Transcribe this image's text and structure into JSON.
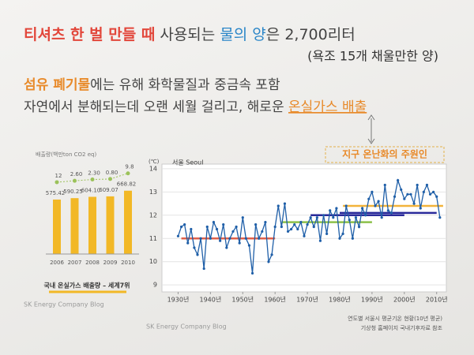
{
  "slide": {
    "line1": [
      "티셔츠 한 벌 만들 때",
      " 사용되는 ",
      "물의 양",
      "은 2,700리터"
    ],
    "line2": "(욕조 15개 채울만한 양)",
    "line3": [
      "섬유 폐기물",
      "에는 유해 화학물질과 중금속 포함"
    ],
    "line4": [
      "자연에서 분해되는데 오랜 세월 걸리고, 해로운 ",
      "온실가스 배출"
    ],
    "annotation": "지구 온난화의 주원인",
    "source_left": "SK Energy Company Blog",
    "source_mid": "SK Energy Company Blog"
  },
  "chart_data": [
    {
      "type": "bar",
      "title": "배출량(백만ton CO2 eq)",
      "caption": "국내 온실가스 배출량 – 세계7위",
      "categories": [
        "2006",
        "2007",
        "2008",
        "2009",
        "2010"
      ],
      "values": [
        575.42,
        590.25,
        604.1,
        609.07,
        668.82
      ],
      "value_labels": [
        "575.42",
        "590.25",
        "604.10",
        "609.07",
        "668.82"
      ],
      "color": "#f2b826",
      "growth": [
        12,
        2.6,
        2.3,
        0.8,
        9.8
      ],
      "growth_labels": [
        "12",
        "2.60",
        "2.30",
        "0.80",
        "9.8"
      ],
      "growth_color": "#9bc25a"
    },
    {
      "type": "line",
      "unit": "(℃)",
      "series": [
        {
          "name": "서울 Seoul",
          "color": "#1f5fa8",
          "x": [
            1930,
            1931,
            1932,
            1933,
            1934,
            1935,
            1936,
            1937,
            1938,
            1939,
            1940,
            1941,
            1942,
            1943,
            1944,
            1945,
            1946,
            1947,
            1948,
            1949,
            1950,
            1951,
            1952,
            1953,
            1954,
            1955,
            1956,
            1957,
            1958,
            1959,
            1960,
            1961,
            1962,
            1963,
            1964,
            1965,
            1966,
            1967,
            1968,
            1969,
            1970,
            1971,
            1972,
            1973,
            1974,
            1975,
            1976,
            1977,
            1978,
            1979,
            1980,
            1981,
            1982,
            1983,
            1984,
            1985,
            1986,
            1987,
            1988,
            1989,
            1990,
            1991,
            1992,
            1993,
            1994,
            1995,
            1996,
            1997,
            1998,
            1999,
            2000,
            2001,
            2002,
            2003,
            2004,
            2005,
            2006,
            2007,
            2008,
            2009,
            2010,
            2011
          ],
          "values": [
            11.1,
            11.5,
            11.6,
            10.8,
            11.4,
            10.6,
            10.3,
            11.0,
            9.7,
            11.5,
            11.0,
            11.7,
            11.4,
            10.9,
            11.6,
            10.6,
            11.0,
            11.3,
            11.5,
            10.8,
            11.9,
            11.0,
            10.7,
            9.5,
            11.6,
            11.0,
            11.3,
            11.7,
            10.0,
            10.3,
            11.5,
            12.4,
            11.5,
            12.5,
            11.3,
            11.4,
            11.6,
            11.4,
            11.7,
            11.1,
            11.6,
            11.9,
            11.5,
            11.9,
            10.9,
            12.0,
            11.2,
            12.2,
            11.9,
            12.3,
            11.0,
            11.2,
            12.4,
            11.8,
            11.0,
            11.9,
            11.5,
            12.3,
            12.0,
            12.7,
            13.0,
            12.4,
            12.6,
            11.9,
            13.3,
            12.2,
            12.1,
            12.8,
            13.5,
            13.1,
            12.7,
            12.9,
            12.9,
            12.5,
            13.3,
            12.3,
            13.0,
            13.3,
            12.9,
            13.0,
            12.8,
            11.9
          ]
        }
      ],
      "normals": [
        {
          "start": 1931,
          "end": 1960,
          "value": 11.0,
          "color": "#e0604a"
        },
        {
          "start": 1962,
          "end": 1990,
          "value": 11.7,
          "color": "#8cc04a"
        },
        {
          "start": 1971,
          "end": 2000,
          "value": 12.0,
          "color": "#2a2a9a"
        },
        {
          "start": 1980,
          "end": 2010,
          "value": 12.1,
          "color": "#2a2a9a"
        },
        {
          "start": 1981,
          "end": 2012,
          "value": 12.4,
          "color": "#f2b33a"
        }
      ],
      "xlim": [
        1925,
        2013
      ],
      "ylim": [
        8.7,
        14.2
      ],
      "yticks": [
        9,
        10,
        11,
        12,
        13,
        14
      ],
      "xticks": [
        {
          "value": 1930,
          "label": "1930년"
        },
        {
          "value": 1940,
          "label": "1940년"
        },
        {
          "value": 1950,
          "label": "1950년"
        },
        {
          "value": 1960,
          "label": "1960년"
        },
        {
          "value": 1970,
          "label": "1970년"
        },
        {
          "value": 1980,
          "label": "1980년"
        },
        {
          "value": 1990,
          "label": "1990년"
        },
        {
          "value": 2000,
          "label": "2000년"
        },
        {
          "value": 2010,
          "label": "2010년"
        }
      ],
      "grid": true,
      "footnote": [
        "연도별 서울시 평균기온 현황(10년 평균)",
        "기상청 홈페이지 국내기후자료 참조"
      ]
    }
  ]
}
